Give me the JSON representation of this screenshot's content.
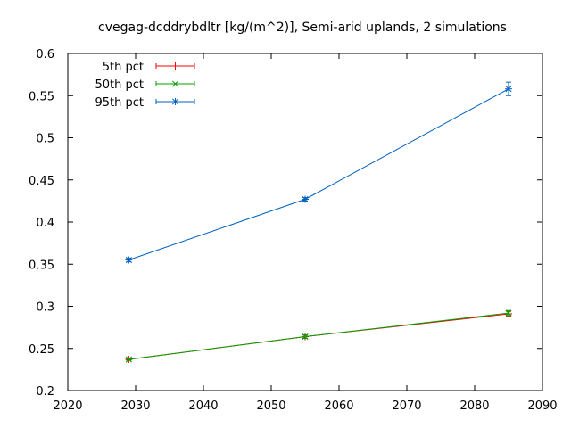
{
  "chart_data": {
    "type": "line",
    "title": "cvegag-dcddrybdltr [kg/(m^2)], Semi-arid uplands, 2 simulations",
    "xlabel": "",
    "ylabel": "",
    "xlim": [
      2020,
      2090
    ],
    "ylim": [
      0.2,
      0.6
    ],
    "xticks": [
      2020,
      2030,
      2040,
      2050,
      2060,
      2070,
      2080,
      2090
    ],
    "yticks": [
      0.2,
      0.25,
      0.3,
      0.35,
      0.4,
      0.45,
      0.5,
      0.55,
      0.6
    ],
    "xtick_labels": [
      "2020",
      "2030",
      "2040",
      "2050",
      "2060",
      "2070",
      "2080",
      "2090"
    ],
    "ytick_labels": [
      "0.2",
      "0.25",
      "0.3",
      "0.35",
      "0.4",
      "0.45",
      "0.5",
      "0.55",
      "0.6"
    ],
    "grid": false,
    "legend_position": "top-left",
    "x": [
      2029,
      2055,
      2085
    ],
    "series": [
      {
        "name": "5th pct",
        "color": "#ff0000",
        "marker": "plus",
        "values": [
          0.237,
          0.264,
          0.291
        ],
        "err": [
          0.001,
          0.002,
          0.003
        ]
      },
      {
        "name": "50th pct",
        "color": "#00a000",
        "marker": "x",
        "values": [
          0.237,
          0.264,
          0.292
        ],
        "err": [
          0.001,
          0.002,
          0.003
        ]
      },
      {
        "name": "95th pct",
        "color": "#0060c0",
        "marker": "star",
        "values": [
          0.355,
          0.427,
          0.558
        ],
        "err": [
          0.002,
          0.002,
          0.008
        ]
      }
    ]
  }
}
